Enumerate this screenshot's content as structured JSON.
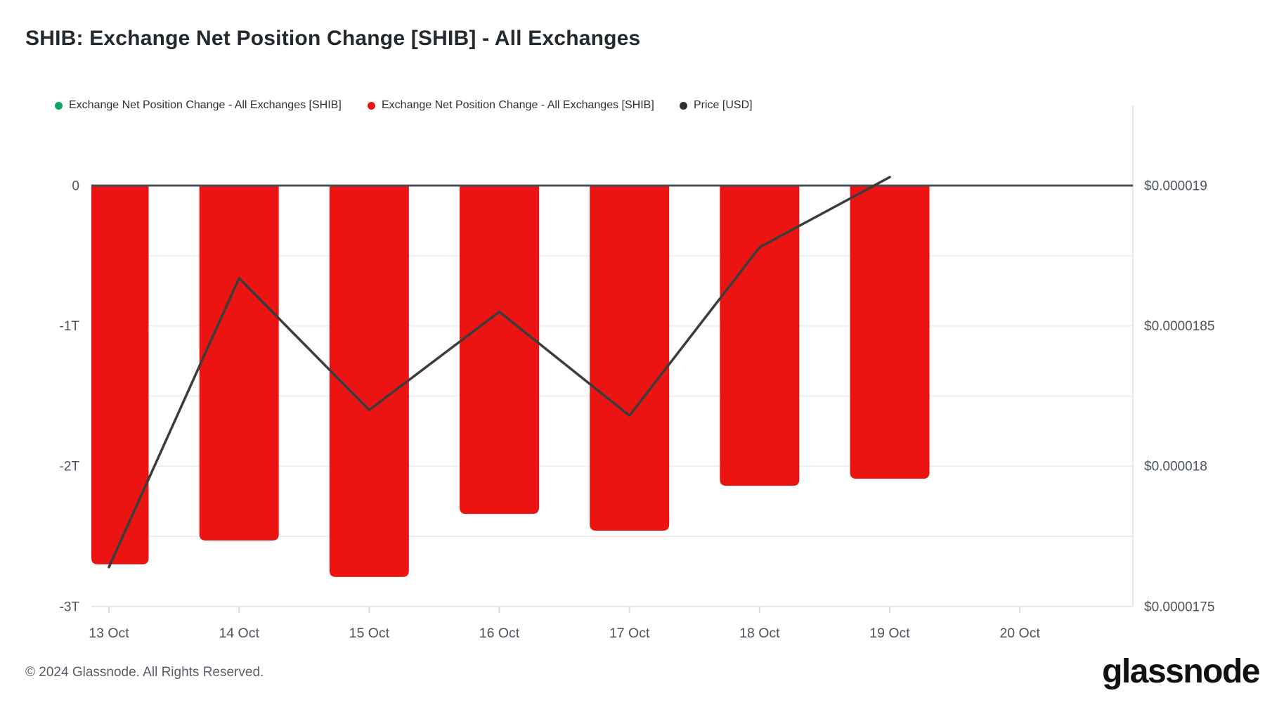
{
  "header": {
    "title": "SHIB: Exchange Net Position Change [SHIB] - All Exchanges"
  },
  "legend": {
    "items": [
      {
        "label": "Exchange Net Position Change - All Exchanges [SHIB]",
        "color": "#0fa65f"
      },
      {
        "label": "Exchange Net Position Change - All Exchanges [SHIB]",
        "color": "#ec1313"
      },
      {
        "label": "Price [USD]",
        "color": "#2f2f2f"
      }
    ]
  },
  "footer": {
    "copyright": "© 2024 Glassnode. All Rights Reserved.",
    "logo": "glassnode"
  },
  "colors": {
    "background": "#ffffff",
    "bar": "#ec1313",
    "price_line": "#3c3c3c",
    "zero_line": "#4a4f54",
    "grid": "#efefef",
    "axis_line": "#e7e7e7",
    "tick_mark": "#dcdcdc",
    "axis_text": "#4d545d"
  },
  "chart_data": {
    "type": "bar",
    "title": "SHIB: Exchange Net Position Change [SHIB] - All Exchanges",
    "subtitle": "",
    "legend_position": "top-left",
    "grid": "horizontal",
    "categories": [
      "13 Oct",
      "14 Oct",
      "15 Oct",
      "16 Oct",
      "17 Oct",
      "18 Oct",
      "19 Oct",
      "20 Oct"
    ],
    "series": [
      {
        "name": "Exchange Net Position Change - All Exchanges [SHIB]",
        "type": "bar",
        "axis": "left",
        "unit": "trillions of SHIB",
        "color": "#ec1313",
        "values": [
          -2.7,
          -2.53,
          -2.79,
          -2.34,
          -2.46,
          -2.14,
          -2.09,
          null
        ]
      },
      {
        "name": "Price [USD]",
        "type": "line",
        "axis": "right",
        "unit": "USD",
        "color": "#3c3c3c",
        "values": [
          1.764e-05,
          1.867e-05,
          1.82e-05,
          1.855e-05,
          1.818e-05,
          1.878e-05,
          1.903e-05,
          null
        ]
      }
    ],
    "left_axis": {
      "unit": "T",
      "ticks": [
        {
          "label": "0",
          "t": 0
        },
        {
          "label": "-1T",
          "t": -1
        },
        {
          "label": "-2T",
          "t": -2
        },
        {
          "label": "-3T",
          "t": -3
        }
      ],
      "grid_interval_T": 0.5,
      "range_T": [
        -3,
        0.57
      ]
    },
    "right_axis": {
      "unit": "USD",
      "ticks": [
        {
          "label": "$0.000019",
          "usd": 1.9e-05
        },
        {
          "label": "$0.0000185",
          "usd": 1.85e-05
        },
        {
          "label": "$0.000018",
          "usd": 1.8e-05
        },
        {
          "label": "$0.0000175",
          "usd": 1.75e-05
        }
      ],
      "range_usd": [
        1.75e-05,
        1.9004e-05
      ]
    }
  }
}
